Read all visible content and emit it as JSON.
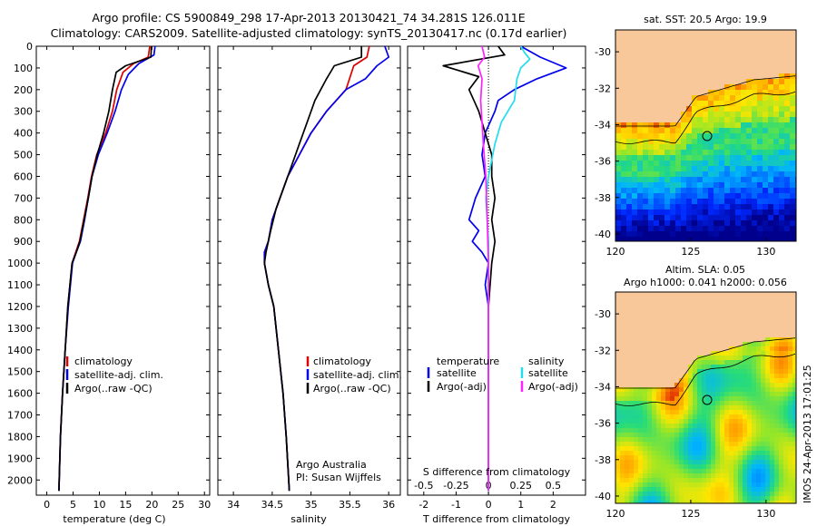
{
  "header": {
    "line1": "Argo profile: CS 5900849_298 17-Apr-2013 20130421_74 34.281S 126.011E",
    "line2": "Climatology: CARS2009. Satellite-adjusted climatology: synTS_20130417.nc (0.17d earlier)"
  },
  "colors": {
    "climatology": "#dd0000",
    "satellite": "#0000ee",
    "argo": "#000000",
    "argo_salinity": "#ff22ff",
    "satellite_salinity": "#22ddee",
    "land": "#f8c89a"
  },
  "chart_data": [
    {
      "type": "line",
      "id": "temperature_profile",
      "xlabel": "temperature (deg C)",
      "ylabel": "",
      "xlim": [
        -2,
        31
      ],
      "ylim": [
        2070,
        0
      ],
      "xticks": [
        "0",
        "5",
        "10",
        "15",
        "20",
        "25",
        "30"
      ],
      "yticks": [
        "0",
        "100",
        "200",
        "300",
        "400",
        "500",
        "600",
        "700",
        "800",
        "900",
        "1000",
        "1100",
        "1200",
        "1300",
        "1400",
        "1500",
        "1600",
        "1700",
        "1800",
        "1900",
        "2000"
      ],
      "legend": [
        "climatology",
        "satellite-adj. clim.",
        "Argo(..raw -QC)"
      ],
      "series": [
        {
          "name": "climatology",
          "color": "#dd0000",
          "points": [
            [
              19.6,
              0
            ],
            [
              19.3,
              50
            ],
            [
              16.5,
              80
            ],
            [
              14.5,
              120
            ],
            [
              13.3,
              200
            ],
            [
              12.5,
              300
            ],
            [
              11.2,
              400
            ],
            [
              9.5,
              500
            ],
            [
              8.5,
              600
            ],
            [
              7.8,
              700
            ],
            [
              7.0,
              800
            ],
            [
              6.2,
              900
            ],
            [
              5.5,
              950
            ],
            [
              4.8,
              1000
            ],
            [
              4.0,
              1200
            ],
            [
              3.5,
              1400
            ],
            [
              3.0,
              1600
            ],
            [
              2.6,
              1800
            ],
            [
              2.3,
              2050
            ]
          ]
        },
        {
          "name": "satellite-adj. clim.",
          "color": "#0000ee",
          "points": [
            [
              20.6,
              0
            ],
            [
              20.4,
              40
            ],
            [
              17.5,
              80
            ],
            [
              15.5,
              130
            ],
            [
              14.2,
              200
            ],
            [
              13.0,
              300
            ],
            [
              11.5,
              400
            ],
            [
              9.8,
              500
            ],
            [
              8.6,
              600
            ],
            [
              7.9,
              700
            ],
            [
              7.2,
              800
            ],
            [
              6.4,
              900
            ],
            [
              5.6,
              950
            ],
            [
              4.9,
              1000
            ],
            [
              4.1,
              1200
            ],
            [
              3.5,
              1400
            ],
            [
              3.0,
              1600
            ],
            [
              2.6,
              1800
            ],
            [
              2.3,
              2050
            ]
          ]
        },
        {
          "name": "Argo(..raw -QC)",
          "color": "#000000",
          "points": [
            [
              19.9,
              0
            ],
            [
              19.8,
              50
            ],
            [
              15.0,
              90
            ],
            [
              13.2,
              120
            ],
            [
              12.5,
              200
            ],
            [
              11.8,
              300
            ],
            [
              10.8,
              400
            ],
            [
              9.6,
              500
            ],
            [
              8.6,
              600
            ],
            [
              7.9,
              700
            ],
            [
              7.1,
              800
            ],
            [
              6.3,
              900
            ],
            [
              5.6,
              950
            ],
            [
              4.8,
              1000
            ],
            [
              4.0,
              1200
            ],
            [
              3.5,
              1400
            ],
            [
              3.0,
              1600
            ],
            [
              2.6,
              1800
            ],
            [
              2.3,
              2050
            ]
          ]
        }
      ]
    },
    {
      "type": "line",
      "id": "salinity_profile",
      "xlabel": "salinity",
      "xlim": [
        33.8,
        36.15
      ],
      "ylim": [
        2070,
        0
      ],
      "xticks": [
        "34",
        "34.5",
        "35",
        "35.5",
        "36"
      ],
      "legend": [
        "climatology",
        "satellite-adj. clim.",
        "Argo(..raw -QC)"
      ],
      "annotations": [
        "Argo Australia",
        "PI: Susan Wijffels"
      ],
      "series": [
        {
          "name": "climatology",
          "color": "#dd0000",
          "points": [
            [
              35.75,
              0
            ],
            [
              35.72,
              50
            ],
            [
              35.55,
              90
            ],
            [
              35.45,
              200
            ],
            [
              35.2,
              300
            ],
            [
              35.0,
              400
            ],
            [
              34.85,
              500
            ],
            [
              34.7,
              600
            ],
            [
              34.6,
              700
            ],
            [
              34.5,
              800
            ],
            [
              34.45,
              900
            ],
            [
              34.4,
              950
            ],
            [
              34.4,
              1000
            ],
            [
              34.45,
              1100
            ],
            [
              34.52,
              1200
            ],
            [
              34.58,
              1400
            ],
            [
              34.64,
              1600
            ],
            [
              34.68,
              1800
            ],
            [
              34.72,
              2050
            ]
          ]
        },
        {
          "name": "satellite-adj. clim.",
          "color": "#0000ee",
          "points": [
            [
              35.95,
              0
            ],
            [
              36.0,
              50
            ],
            [
              35.85,
              90
            ],
            [
              35.7,
              150
            ],
            [
              35.45,
              200
            ],
            [
              35.2,
              300
            ],
            [
              35.0,
              400
            ],
            [
              34.85,
              500
            ],
            [
              34.7,
              600
            ],
            [
              34.6,
              700
            ],
            [
              34.5,
              800
            ],
            [
              34.45,
              900
            ],
            [
              34.4,
              950
            ],
            [
              34.4,
              1000
            ],
            [
              34.45,
              1100
            ],
            [
              34.52,
              1200
            ],
            [
              34.58,
              1400
            ],
            [
              34.64,
              1600
            ],
            [
              34.68,
              1800
            ],
            [
              34.72,
              2050
            ]
          ]
        },
        {
          "name": "Argo(..raw -QC)",
          "color": "#000000",
          "points": [
            [
              35.65,
              0
            ],
            [
              35.65,
              50
            ],
            [
              35.3,
              90
            ],
            [
              35.2,
              150
            ],
            [
              35.05,
              250
            ],
            [
              34.95,
              350
            ],
            [
              34.85,
              450
            ],
            [
              34.75,
              550
            ],
            [
              34.65,
              650
            ],
            [
              34.55,
              750
            ],
            [
              34.48,
              850
            ],
            [
              34.42,
              950
            ],
            [
              34.4,
              1000
            ],
            [
              34.45,
              1100
            ],
            [
              34.52,
              1200
            ],
            [
              34.58,
              1400
            ],
            [
              34.64,
              1600
            ],
            [
              34.68,
              1800
            ],
            [
              34.72,
              2050
            ]
          ]
        }
      ]
    },
    {
      "type": "line",
      "id": "difference_profile",
      "xlabel": "T difference from climatology",
      "top_axis_label": "S difference from climatology",
      "xlim_T": [
        -2.5,
        3.0
      ],
      "xlim_S": [
        -0.625,
        0.75
      ],
      "ylim": [
        2070,
        0
      ],
      "xticks": [
        "-2",
        "-1",
        "0",
        "1",
        "2"
      ],
      "top_ticks": [
        "-0.5",
        "-0.25",
        "0",
        "0.25",
        "0.5"
      ],
      "legend": {
        "col1_title": "temperature",
        "col2_title": "salinity",
        "items": [
          "satellite",
          "Argo(-adj)",
          "satellite",
          "Argo(-adj)"
        ]
      },
      "series": [
        {
          "name": "satellite",
          "group": "temperature",
          "color": "#0000ee",
          "points": [
            [
              1.0,
              0
            ],
            [
              1.6,
              50
            ],
            [
              2.4,
              100
            ],
            [
              1.5,
              150
            ],
            [
              0.8,
              200
            ],
            [
              0.3,
              250
            ],
            [
              0.2,
              300
            ],
            [
              -0.1,
              400
            ],
            [
              -0.2,
              500
            ],
            [
              -0.1,
              600
            ],
            [
              -0.4,
              700
            ],
            [
              -0.6,
              800
            ],
            [
              -0.3,
              850
            ],
            [
              -0.5,
              900
            ],
            [
              -0.2,
              950
            ],
            [
              0.0,
              1000
            ],
            [
              -0.1,
              1100
            ],
            [
              0.0,
              1200
            ],
            [
              0.0,
              1300
            ],
            [
              0.0,
              2050
            ]
          ]
        },
        {
          "name": "Argo(-adj)",
          "group": "temperature",
          "color": "#000000",
          "points": [
            [
              0.3,
              0
            ],
            [
              0.5,
              40
            ],
            [
              -1.4,
              90
            ],
            [
              -0.3,
              140
            ],
            [
              -0.6,
              200
            ],
            [
              -0.3,
              300
            ],
            [
              -0.1,
              400
            ],
            [
              0.1,
              500
            ],
            [
              0.1,
              600
            ],
            [
              0.2,
              700
            ],
            [
              0.1,
              800
            ],
            [
              0.2,
              900
            ],
            [
              0.1,
              1000
            ],
            [
              0.05,
              1100
            ],
            [
              0.0,
              1200
            ],
            [
              0.0,
              2050
            ]
          ]
        },
        {
          "name": "satellite",
          "group": "salinity",
          "color": "#22ddee",
          "points": [
            [
              0.25,
              0
            ],
            [
              0.28,
              30
            ],
            [
              0.32,
              60
            ],
            [
              0.25,
              100
            ],
            [
              0.22,
              150
            ],
            [
              0.2,
              250
            ],
            [
              0.1,
              350
            ],
            [
              0.05,
              450
            ],
            [
              0.0,
              600
            ],
            [
              -0.02,
              700
            ],
            [
              0.0,
              900
            ],
            [
              0.0,
              1100
            ],
            [
              0.0,
              2050
            ]
          ]
        },
        {
          "name": "Argo(-adj)",
          "group": "salinity",
          "color": "#ff22ff",
          "points": [
            [
              -0.05,
              0
            ],
            [
              -0.03,
              50
            ],
            [
              -0.08,
              90
            ],
            [
              -0.05,
              150
            ],
            [
              -0.06,
              250
            ],
            [
              -0.05,
              350
            ],
            [
              -0.04,
              450
            ],
            [
              -0.02,
              600
            ],
            [
              -0.01,
              800
            ],
            [
              0.0,
              1000
            ],
            [
              0.0,
              2050
            ]
          ]
        }
      ]
    },
    {
      "type": "heatmap",
      "id": "sst_map",
      "title": "sat. SST: 20.5 Argo: 19.9",
      "xlim": [
        120,
        132
      ],
      "ylim": [
        -40.4,
        -28.8
      ],
      "xticks": [
        "120",
        "125",
        "130"
      ],
      "yticks": [
        "-30",
        "-32",
        "-34",
        "-36",
        "-38",
        "-40"
      ],
      "argo_position": [
        126.01,
        -34.28
      ]
    },
    {
      "type": "heatmap",
      "id": "sla_map",
      "title": "Altim. SLA: 0.05",
      "subtitle": "Argo h1000: 0.041 h2000: 0.056",
      "xlim": [
        120,
        132
      ],
      "ylim": [
        -40.4,
        -28.8
      ],
      "xticks": [
        "120",
        "125",
        "130"
      ],
      "yticks": [
        "-30",
        "-32",
        "-34",
        "-36",
        "-38",
        "-40"
      ],
      "argo_position": [
        126.01,
        -34.28
      ]
    }
  ],
  "footer": {
    "stamp": "IMOS 24-Apr-2013 17:01:25"
  }
}
